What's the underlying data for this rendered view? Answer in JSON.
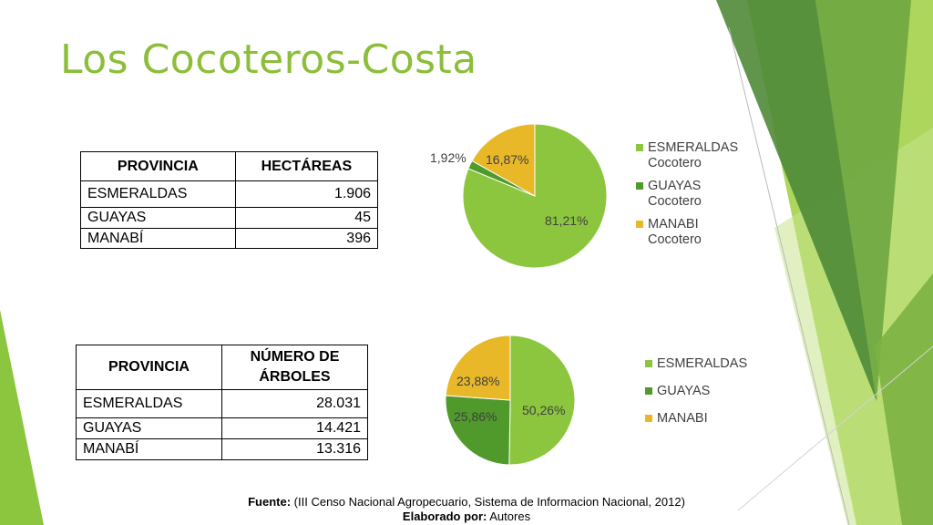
{
  "slide": {
    "title": "Los Cocoteros-Costa",
    "footer": {
      "fuente_label": "Fuente:",
      "fuente_text": "(III Censo Nacional Agropecuario, Sistema de Informacion Nacional, 2012)",
      "elaborado_label": "Elaborado por:",
      "elaborado_text": "Autores"
    }
  },
  "table_hectareas": {
    "headers": [
      "PROVINCIA",
      "HECTÁREAS"
    ],
    "rows": [
      [
        "ESMERALDAS",
        "1.906"
      ],
      [
        "GUAYAS",
        "45"
      ],
      [
        "MANABÍ",
        "396"
      ]
    ]
  },
  "table_arboles": {
    "headers": [
      "PROVINCIA",
      "NÚMERO DE ÁRBOLES"
    ],
    "rows": [
      [
        "ESMERALDAS",
        "28.031"
      ],
      [
        "GUAYAS",
        "14.421"
      ],
      [
        "MANABÍ",
        "13.316"
      ]
    ]
  },
  "colors": {
    "title": "#8cbe3a",
    "esmeraldas": "#8cc63f",
    "guayas": "#4f9a2b",
    "manabi": "#e8b829",
    "deco_dark": "#4f8a37",
    "deco_light": "#9dcf3f"
  },
  "chart_data": [
    {
      "type": "pie",
      "legend_position": "right",
      "categories": [
        "ESMERALDAS Cocotero",
        "GUAYAS Cocotero",
        "MANABI Cocotero"
      ],
      "legend_lines": [
        [
          "ESMERALDAS",
          "Cocotero"
        ],
        [
          "GUAYAS",
          "Cocotero"
        ],
        [
          "MANABI",
          "Cocotero"
        ]
      ],
      "values": [
        81.21,
        1.92,
        16.87
      ],
      "labels": [
        "81,21%",
        "1,92%",
        "16,87%"
      ],
      "colors": [
        "#8cc63f",
        "#4f9a2b",
        "#e8b829"
      ]
    },
    {
      "type": "pie",
      "legend_position": "right",
      "categories": [
        "ESMERALDAS",
        "GUAYAS",
        "MANABI"
      ],
      "legend_lines": [
        [
          "ESMERALDAS"
        ],
        [
          "GUAYAS"
        ],
        [
          "MANABI"
        ]
      ],
      "values": [
        50.26,
        25.86,
        23.88
      ],
      "labels": [
        "50,26%",
        "25,86%",
        "23,88%"
      ],
      "colors": [
        "#8cc63f",
        "#4f9a2b",
        "#e8b829"
      ]
    }
  ]
}
